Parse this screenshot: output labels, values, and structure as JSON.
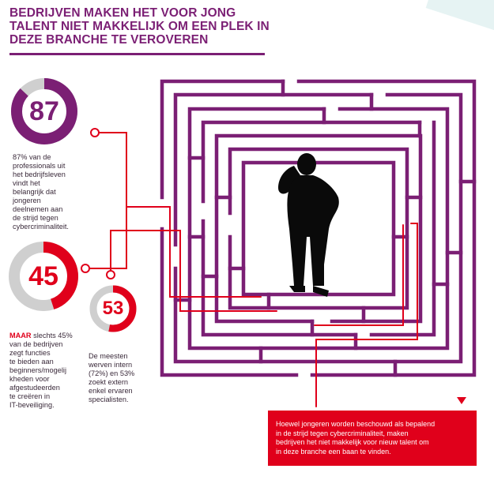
{
  "headline": {
    "line1": "BEDRIJVEN MAKEN HET VOOR JONG",
    "line2": "TALENT NIET MAKKELIJK OM EEN PLEK IN",
    "line3": "DEZE BRANCHE TE VEROVEREN"
  },
  "stat87": {
    "value": "87",
    "fraction": 0.87,
    "ring_color": "#7b1f74",
    "lines": [
      "87% van de",
      "professionals uit",
      "het bedrijfsleven",
      "vindt het",
      "belangrijk dat",
      "jongeren",
      "deelnemen aan",
      "de strijd tegen",
      "cybercriminaliteit."
    ]
  },
  "stat45": {
    "value": "45",
    "fraction": 0.45,
    "ring_color": "#e0001b",
    "highlight": "MAAR",
    "line1_rest": " slechts 45%",
    "lines": [
      "van de bedrijven",
      "zegt functies",
      "te bieden aan",
      "beginners/mogelij",
      "kheden voor",
      "afgestudeerden",
      "te creëren in",
      "IT-beveiliging."
    ]
  },
  "stat53": {
    "value": "53",
    "fraction": 0.53,
    "ring_color": "#e0001b",
    "lines": [
      "De meesten",
      "werven  intern",
      "(72%) en 53%",
      "zoekt extern",
      "enkel ervaren",
      "specialisten."
    ]
  },
  "callout": {
    "lines": [
      "Hoewel jongeren worden beschouwd als bepalend",
      "in de strijd tegen cybercriminaliteit, maken",
      "bedrijven het niet makkelijk voor nieuw talent om",
      "in deze branche een baan te vinden."
    ]
  },
  "colors": {
    "purple": "#7b1f74",
    "red": "#e0001b",
    "grey": "#cfcfcf"
  },
  "icons": {
    "figure": "confused-person-icon",
    "maze": "maze-icon",
    "marker": "triangle-down-icon"
  }
}
